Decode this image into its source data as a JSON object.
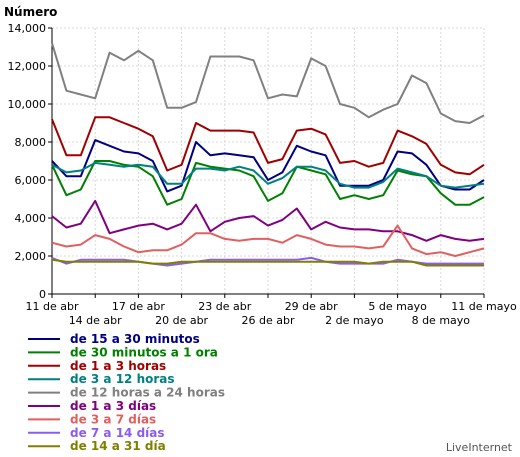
{
  "chart_data": {
    "type": "line",
    "ylabel": "Número",
    "ylim": [
      0,
      14000
    ],
    "yticks": [
      0,
      2000,
      4000,
      6000,
      8000,
      10000,
      12000,
      14000
    ],
    "ytick_labels": [
      "0",
      "2,000",
      "4,000",
      "6,000",
      "8,000",
      "10,000",
      "12,000",
      "14,000"
    ],
    "grid": true,
    "xtick_labels_top": [
      "11 de abr",
      "17 de abr",
      "23 de abr",
      "29 de abr",
      "5 de mayo",
      "11 de mayo"
    ],
    "xtick_labels_bottom": [
      "14 de abr",
      "20 de abr",
      "26 de abr",
      "2 de mayo",
      "8 de mayo"
    ],
    "x": [
      "11 abr",
      "12 abr",
      "13 abr",
      "14 abr",
      "15 abr",
      "16 abr",
      "17 abr",
      "18 abr",
      "19 abr",
      "20 abr",
      "21 abr",
      "22 abr",
      "23 abr",
      "24 abr",
      "25 abr",
      "26 abr",
      "27 abr",
      "28 abr",
      "29 abr",
      "30 abr",
      "1 mayo",
      "2 mayo",
      "3 mayo",
      "4 mayo",
      "5 mayo",
      "6 mayo",
      "7 mayo",
      "8 mayo",
      "9 mayo",
      "10 mayo",
      "11 mayo"
    ],
    "series": [
      {
        "name": "de 15 a 30 minutos",
        "color": "#000080",
        "values": [
          7000,
          6200,
          6200,
          8100,
          7800,
          7500,
          7400,
          7000,
          5400,
          5700,
          8000,
          7300,
          7400,
          7300,
          7200,
          6000,
          6400,
          7800,
          7500,
          7300,
          5700,
          5700,
          5700,
          6000,
          7500,
          7400,
          6800,
          5700,
          5500,
          5500,
          6000
        ]
      },
      {
        "name": "de 30 minutos a 1 ora",
        "color": "#008000",
        "values": [
          6800,
          5200,
          5500,
          7000,
          7000,
          6800,
          6700,
          6200,
          4700,
          5000,
          6900,
          6700,
          6600,
          6500,
          6200,
          4900,
          5300,
          6700,
          6500,
          6300,
          5000,
          5200,
          5000,
          5200,
          6500,
          6300,
          6200,
          5300,
          4700,
          4700,
          5100
        ]
      },
      {
        "name": "de 1 a 3 horas",
        "color": "#a00000",
        "values": [
          9200,
          7300,
          7300,
          9300,
          9300,
          9000,
          8700,
          8300,
          6500,
          6800,
          9000,
          8600,
          8600,
          8600,
          8500,
          6900,
          7100,
          8600,
          8700,
          8400,
          6900,
          7000,
          6700,
          6900,
          8600,
          8300,
          7900,
          6800,
          6400,
          6300,
          6800
        ]
      },
      {
        "name": "de 3 a 12 horas",
        "color": "#008080",
        "values": [
          6800,
          6400,
          6500,
          6900,
          6800,
          6700,
          6800,
          6700,
          5800,
          5800,
          6600,
          6600,
          6500,
          6700,
          6500,
          5800,
          6100,
          6700,
          6700,
          6500,
          5800,
          5600,
          5600,
          5900,
          6600,
          6400,
          6200,
          5700,
          5600,
          5700,
          5800
        ]
      },
      {
        "name": "de 12 horas a 24 horas",
        "color": "#808080",
        "values": [
          13200,
          10700,
          10500,
          10300,
          12700,
          12300,
          12800,
          12300,
          9800,
          9800,
          10100,
          12500,
          12500,
          12500,
          12300,
          10300,
          10500,
          10400,
          12400,
          12000,
          10000,
          9800,
          9300,
          9700,
          10000,
          11500,
          11100,
          9500,
          9100,
          9000,
          9400
        ]
      },
      {
        "name": "de 1 a 3 días",
        "color": "#800080",
        "values": [
          4100,
          3500,
          3700,
          4900,
          3200,
          3400,
          3600,
          3700,
          3400,
          3700,
          4700,
          3300,
          3800,
          4000,
          4100,
          3600,
          3900,
          4500,
          3400,
          3800,
          3500,
          3400,
          3400,
          3300,
          3300,
          3100,
          2800,
          3100,
          2900,
          2800,
          2900
        ]
      },
      {
        "name": "de 3 a 7 días",
        "color": "#e06060",
        "values": [
          2700,
          2500,
          2600,
          3100,
          2900,
          2500,
          2200,
          2300,
          2300,
          2600,
          3200,
          3200,
          2900,
          2800,
          2900,
          2900,
          2700,
          3100,
          2900,
          2600,
          2500,
          2500,
          2400,
          2500,
          3600,
          2400,
          2100,
          2200,
          2000,
          2200,
          2400
        ]
      },
      {
        "name": "de 7 a 14 días",
        "color": "#8a5cf0",
        "values": [
          1900,
          1600,
          1800,
          1800,
          1800,
          1800,
          1700,
          1600,
          1500,
          1600,
          1700,
          1800,
          1800,
          1800,
          1800,
          1800,
          1800,
          1800,
          1900,
          1700,
          1600,
          1600,
          1600,
          1600,
          1800,
          1700,
          1600,
          1600,
          1600,
          1600,
          1600
        ]
      },
      {
        "name": "de 14 a 31 días",
        "color": "#808000",
        "values": [
          1800,
          1700,
          1700,
          1700,
          1700,
          1700,
          1700,
          1600,
          1600,
          1700,
          1700,
          1700,
          1700,
          1700,
          1700,
          1700,
          1700,
          1700,
          1700,
          1700,
          1700,
          1700,
          1600,
          1700,
          1700,
          1700,
          1500,
          1500,
          1500,
          1500,
          1500
        ]
      }
    ]
  },
  "legend_labels": [
    "de 15 a 30 minutos",
    "de 30 minutos a 1 ora",
    "de 1 a 3 horas",
    "de 3 a 12 horas",
    "de 12 horas a 24 horas",
    "de 1 a 3 días",
    "de 3 a 7 días",
    "de 7 a 14 días",
    "de 14 a 31 día"
  ],
  "brand": "LiveInternet"
}
